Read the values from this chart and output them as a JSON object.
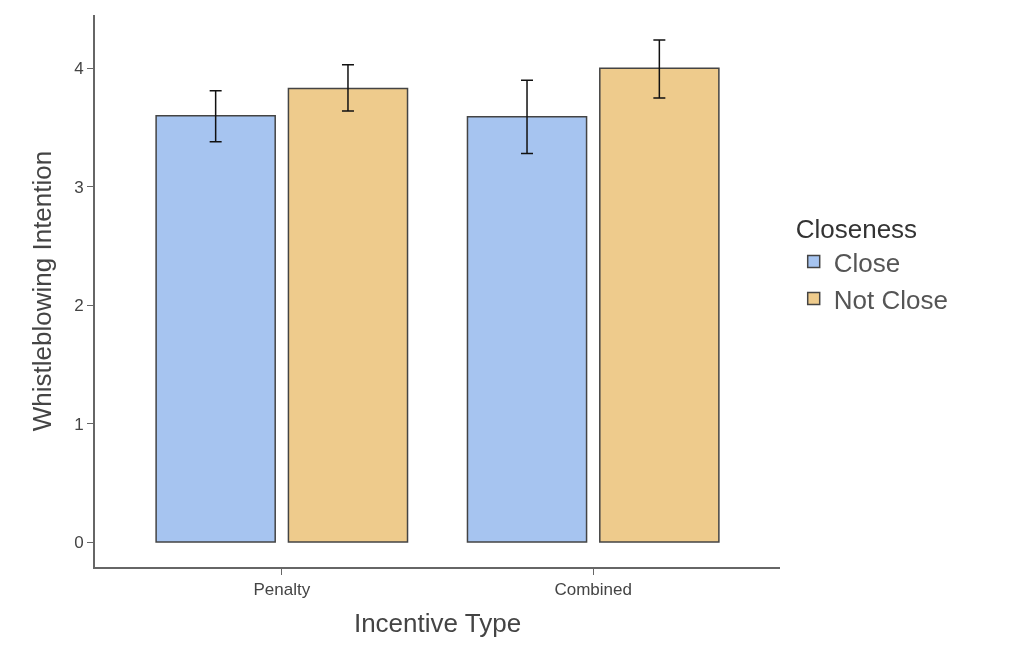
{
  "chart_data": {
    "type": "bar",
    "xlabel": "Incentive Type",
    "ylabel": "Whistleblowing Intention",
    "legend_title": "Closeness",
    "categories": [
      "Penalty",
      "Combined"
    ],
    "series": [
      {
        "name": "Close",
        "color": "#a6c4f0",
        "values": [
          3.6,
          3.59
        ],
        "errors": [
          [
            3.38,
            3.81
          ],
          [
            3.28,
            3.9
          ]
        ]
      },
      {
        "name": "Not Close",
        "color": "#eecb8c",
        "values": [
          3.83,
          4.0
        ],
        "errors": [
          [
            3.64,
            4.03
          ],
          [
            3.75,
            4.24
          ]
        ]
      }
    ],
    "ylim": [
      -0.21,
      4.45
    ],
    "yticks": [
      0,
      1,
      2,
      3,
      4
    ],
    "legend": "right"
  }
}
